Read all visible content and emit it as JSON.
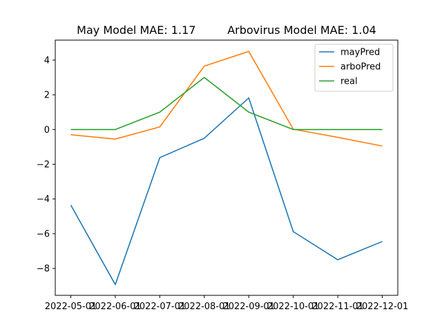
{
  "chart_data": {
    "type": "line",
    "title": "May Model MAE: 1.17         Arbovirus Model MAE: 1.04",
    "xlabel": "",
    "ylabel": "",
    "categories": [
      "2022-05-01",
      "2022-06-01",
      "2022-07-01",
      "2022-08-01",
      "2022-09-01",
      "2022-10-01",
      "2022-11-01",
      "2022-12-01"
    ],
    "ylim": [
      -9.55,
      5.15
    ],
    "yticks": [
      -8,
      -6,
      -4,
      -2,
      0,
      2,
      4
    ],
    "grid": false,
    "legend_position": "top-right",
    "series": [
      {
        "name": "mayPred",
        "color": "#1f77b4",
        "values": [
          -4.35,
          -8.93,
          -1.62,
          -0.5,
          1.82,
          -5.88,
          -7.5,
          -6.45
        ]
      },
      {
        "name": "arboPred",
        "color": "#ff7f0e",
        "values": [
          -0.3,
          -0.55,
          0.15,
          3.65,
          4.5,
          0.02,
          -0.45,
          -0.95
        ]
      },
      {
        "name": "real",
        "color": "#2ca02c",
        "values": [
          0,
          0,
          1,
          3,
          1,
          0,
          0,
          0
        ]
      }
    ]
  }
}
